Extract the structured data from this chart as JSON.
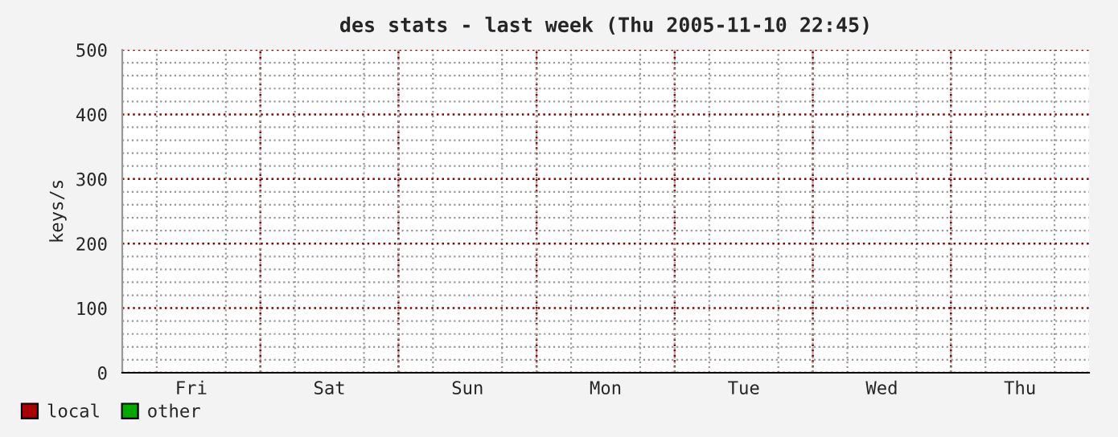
{
  "chart_data": {
    "type": "line",
    "title": "des stats - last week (Thu 2005-11-10 22:45)",
    "ylabel": "keys/s",
    "categories": [
      "Fri",
      "Sat",
      "Sun",
      "Mon",
      "Tue",
      "Wed",
      "Thu"
    ],
    "ylim": [
      0,
      500
    ],
    "yticks": [
      0,
      100,
      200,
      300,
      400,
      500
    ],
    "grid": true,
    "legend": "bottom left",
    "series": [
      {
        "name": "local",
        "color": "#aa0000",
        "values": [
          null,
          null,
          null,
          null,
          null,
          null,
          null
        ]
      },
      {
        "name": "other",
        "color": "#00aa00",
        "values": [
          null,
          null,
          null,
          null,
          null,
          null,
          null
        ]
      }
    ]
  }
}
